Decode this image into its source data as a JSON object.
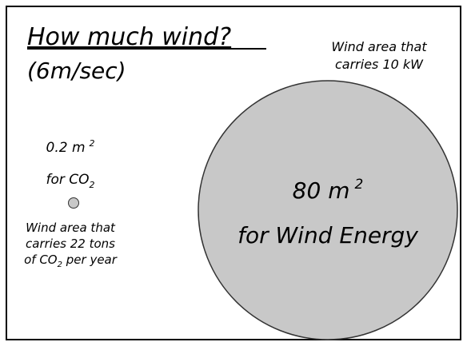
{
  "title": "How much wind?",
  "subtitle": "(6m/sec)",
  "big_note": [
    "Wind area that",
    "carries 10 kW"
  ],
  "small": {
    "area": "0.2 m",
    "area_sup": "2",
    "purpose": "for CO",
    "purpose_sub": "2",
    "note": [
      "Wind area that",
      "carries 22 tons"
    ],
    "note_last": {
      "pre": "of CO",
      "sub": "2",
      "post": " per year"
    }
  },
  "big": {
    "area": "80 m",
    "area_sup": "2",
    "purpose": "for Wind Energy"
  }
}
